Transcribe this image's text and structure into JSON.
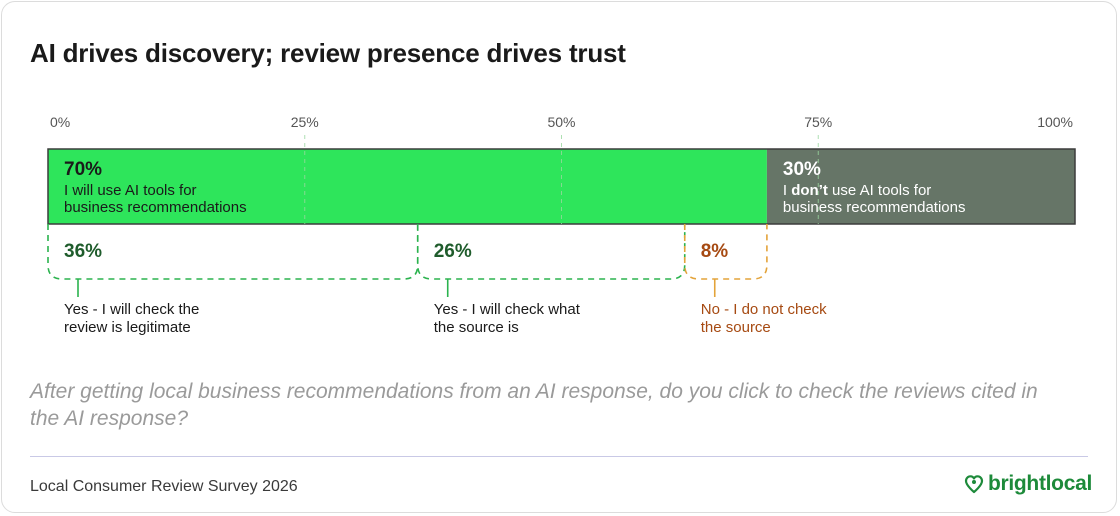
{
  "title": "AI drives discovery; review presence drives trust",
  "question": "After getting local business recommendations from an AI response, do you click to check the reviews cited in the AI response?",
  "source": "Local Consumer Review Survey 2026",
  "brand": {
    "name": "brightlocal",
    "icon": "heart-location-pin-icon",
    "color": "#1d8a3a"
  },
  "chart_data": {
    "type": "bar",
    "orientation": "horizontal-stacked",
    "xlim": [
      0,
      100
    ],
    "ticks": [
      {
        "value": 0,
        "label": "0%"
      },
      {
        "value": 25,
        "label": "25%"
      },
      {
        "value": 50,
        "label": "50%"
      },
      {
        "value": 75,
        "label": "75%"
      },
      {
        "value": 100,
        "label": "100%"
      }
    ],
    "grid": true,
    "segments": [
      {
        "value": 70,
        "pct": "70%",
        "line1": "I will use AI tools for",
        "line1_prefix": "",
        "line1_bold": "",
        "line1_suffix": "",
        "line2": "business recommendations",
        "color": "#2ee55b",
        "text_color": "#1a1a1a"
      },
      {
        "value": 30,
        "pct": "30%",
        "line1": "",
        "line1_prefix": "I ",
        "line1_bold": "don’t",
        "line1_suffix": " use AI tools for",
        "line2": "business recommendations",
        "color": "#667567",
        "text_color": "#ffffff"
      }
    ],
    "sub_segments": [
      {
        "start": 0,
        "value": 36,
        "pct": "36%",
        "label_line1": "Yes - I will check the",
        "label_line2": "review is legitimate",
        "color": "#2bb34e",
        "pct_color": "#1f5c2c",
        "text_color": "#1a1a1a"
      },
      {
        "start": 36,
        "value": 26,
        "pct": "26%",
        "label_line1": "Yes - I will check what",
        "label_line2": "the source is",
        "color": "#2bb34e",
        "pct_color": "#1f5c2c",
        "text_color": "#1a1a1a"
      },
      {
        "start": 62,
        "value": 8,
        "pct": "8%",
        "label_line1": "No - I do not check",
        "label_line2": "the source",
        "color": "#e3a33a",
        "pct_color": "#a64a12",
        "text_color": "#a64a12"
      }
    ]
  }
}
